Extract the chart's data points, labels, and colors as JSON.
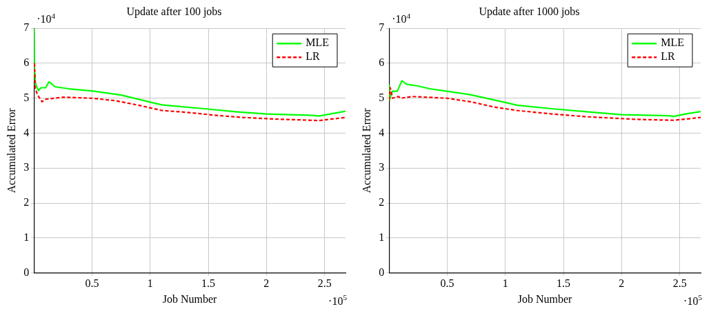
{
  "chart_data": [
    {
      "type": "line",
      "title": "Update after 100 jobs",
      "xlabel": "Job Number",
      "ylabel": "Accumulated Error",
      "xlim": [
        0,
        2.68
      ],
      "xticks": [
        0.5,
        1,
        1.5,
        2,
        2.5
      ],
      "ylim": [
        0,
        7
      ],
      "yticks": [
        0,
        1,
        2,
        3,
        4,
        5,
        6,
        7
      ],
      "grid": true,
      "legend": "top right",
      "marker": "none",
      "annotations": [
        "·10$^{4}$",
        "·10$^{5}$"
      ],
      "series": [
        {
          "name": "MLE",
          "color": "#00ff00",
          "line_style": "solid",
          "x": [
            0,
            0.005,
            0.01,
            0.02,
            0.04,
            0.06,
            0.1,
            0.13,
            0.18,
            0.3,
            0.5,
            0.75,
            1.0,
            1.1,
            1.5,
            1.75,
            2.0,
            2.4,
            2.45,
            2.55,
            2.68
          ],
          "values": [
            7.0,
            5.7,
            5.5,
            5.35,
            5.22,
            5.3,
            5.3,
            5.47,
            5.33,
            5.27,
            5.21,
            5.09,
            4.89,
            4.81,
            4.69,
            4.61,
            4.55,
            4.51,
            4.49,
            4.55,
            4.63
          ]
        },
        {
          "name": "LR",
          "color": "#ff0000",
          "line_style": "dashed",
          "x": [
            0.005,
            0.01,
            0.03,
            0.07,
            0.1,
            0.25,
            0.5,
            0.7,
            0.9,
            1.1,
            1.3,
            1.6,
            1.8,
            2.1,
            2.3,
            2.45,
            2.55,
            2.68
          ],
          "values": [
            6.0,
            5.3,
            5.1,
            4.9,
            4.97,
            5.03,
            5.0,
            4.93,
            4.8,
            4.65,
            4.6,
            4.5,
            4.45,
            4.4,
            4.38,
            4.36,
            4.4,
            4.45
          ]
        }
      ]
    },
    {
      "type": "line",
      "title": "Update after 1000 jobs",
      "xlabel": "Job Number",
      "ylabel": "Accumulated Error",
      "xlim": [
        0,
        2.68
      ],
      "xticks": [
        0.5,
        1,
        1.5,
        2,
        2.5
      ],
      "ylim": [
        0,
        7
      ],
      "yticks": [
        0,
        1,
        2,
        3,
        4,
        5,
        6,
        7
      ],
      "grid": true,
      "legend": "top right",
      "marker": "none",
      "annotations": [
        "·10$^{4}$",
        "·10$^{5}$"
      ],
      "series": [
        {
          "name": "MLE",
          "color": "#00ff00",
          "line_style": "solid",
          "x": [
            0,
            0.005,
            0.015,
            0.03,
            0.07,
            0.11,
            0.15,
            0.25,
            0.35,
            0.5,
            0.7,
            1.0,
            1.1,
            1.4,
            1.75,
            2.0,
            2.4,
            2.45,
            2.55,
            2.68
          ],
          "values": [
            5.4,
            4.95,
            5.1,
            5.2,
            5.2,
            5.5,
            5.4,
            5.35,
            5.27,
            5.2,
            5.1,
            4.88,
            4.8,
            4.7,
            4.6,
            4.53,
            4.5,
            4.48,
            4.55,
            4.62
          ]
        },
        {
          "name": "LR",
          "color": "#ff0000",
          "line_style": "dashed",
          "x": [
            0,
            0.01,
            0.03,
            0.08,
            0.1,
            0.2,
            0.5,
            0.7,
            0.9,
            1.1,
            1.4,
            1.7,
            2.1,
            2.3,
            2.45,
            2.6,
            2.68
          ],
          "values": [
            4.95,
            5.3,
            5.0,
            5.05,
            5.0,
            5.05,
            5.0,
            4.9,
            4.75,
            4.65,
            4.55,
            4.47,
            4.4,
            4.38,
            4.37,
            4.42,
            4.45
          ]
        }
      ]
    }
  ]
}
